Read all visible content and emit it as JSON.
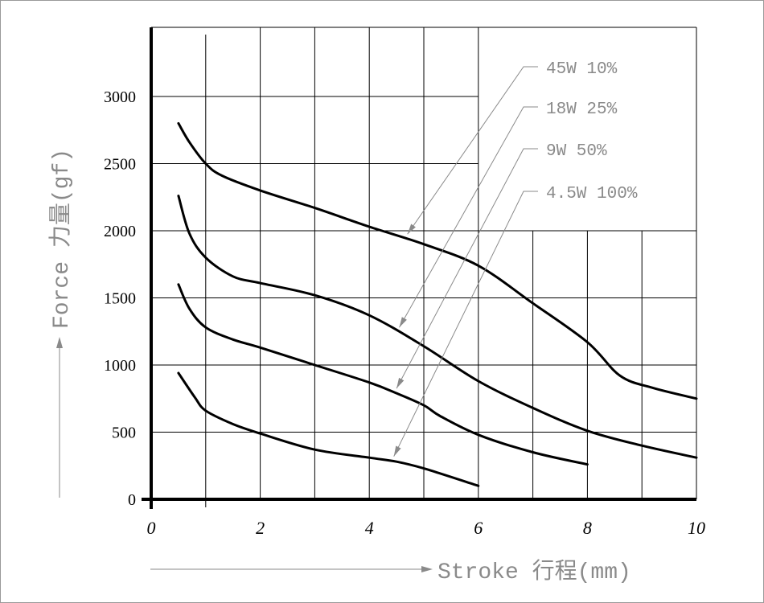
{
  "chart_data": {
    "type": "line",
    "xlabel": "Stroke 行程(mm)",
    "ylabel": "Force 力量(gf)",
    "xlim": [
      0,
      10
    ],
    "ylim": [
      0,
      3000
    ],
    "xticks": [
      "0",
      "2",
      "4",
      "6",
      "8",
      "10"
    ],
    "yticks": [
      "0",
      "500",
      "1000",
      "1500",
      "2000",
      "2500",
      "3000"
    ],
    "grid": true,
    "legend_position": "top-right, with leader arrows pointing to curves",
    "series": [
      {
        "name": "45W 10%",
        "x": [
          0.5,
          0.7,
          1.0,
          1.3,
          2,
          3,
          4,
          5,
          6,
          7,
          8,
          8.6,
          9.2,
          10
        ],
        "y": [
          2800,
          2660,
          2500,
          2410,
          2300,
          2170,
          2030,
          1900,
          1740,
          1460,
          1170,
          920,
          830,
          750
        ]
      },
      {
        "name": "18W 25%",
        "x": [
          0.5,
          0.7,
          1.0,
          1.5,
          2,
          3,
          4,
          5,
          6,
          7,
          8,
          9,
          10
        ],
        "y": [
          2260,
          1980,
          1800,
          1660,
          1610,
          1520,
          1370,
          1140,
          880,
          680,
          510,
          400,
          310
        ]
      },
      {
        "name": "9W 50%",
        "x": [
          0.5,
          0.7,
          1.0,
          1.5,
          2,
          3,
          4,
          4.5,
          5.0,
          5.3,
          6,
          7,
          8
        ],
        "y": [
          1600,
          1420,
          1280,
          1190,
          1130,
          1000,
          870,
          790,
          700,
          620,
          480,
          350,
          260
        ]
      },
      {
        "name": "4.5W 100%",
        "x": [
          0.5,
          0.8,
          1.0,
          1.5,
          2,
          3,
          4,
          4.5,
          5,
          6
        ],
        "y": [
          940,
          760,
          660,
          560,
          490,
          370,
          310,
          280,
          230,
          100
        ]
      }
    ]
  }
}
